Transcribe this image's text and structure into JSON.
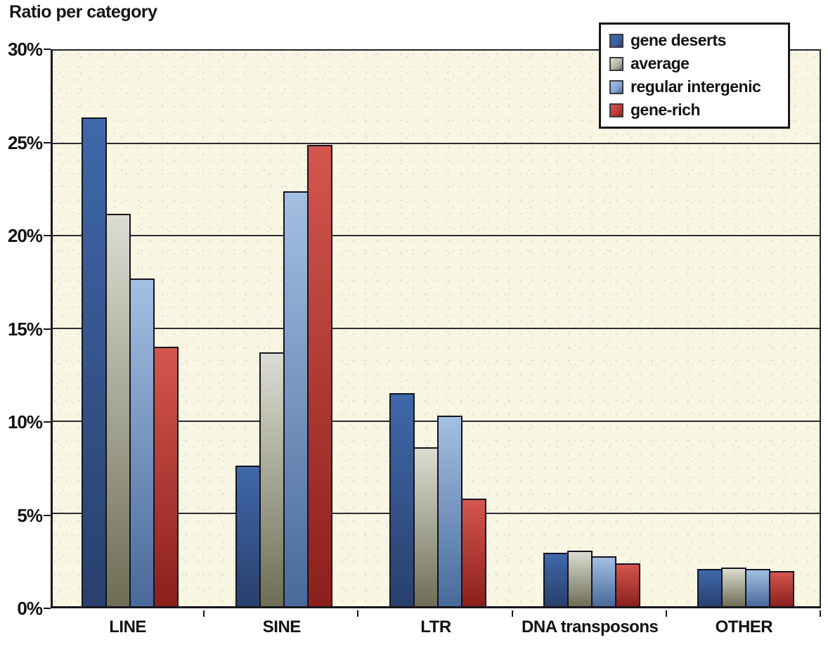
{
  "title": "Ratio per category",
  "chart_data": {
    "type": "bar",
    "title": "Ratio per category",
    "categories": [
      "LINE",
      "SINE",
      "LTR",
      "DNA transposons",
      "OTHER"
    ],
    "series": [
      {
        "name": "gene deserts",
        "values": [
          26.4,
          7.6,
          11.5,
          2.9,
          2.0
        ],
        "color_top": "#4068aa",
        "color_bottom": "#28406d",
        "legend_color": "#3a5fa0"
      },
      {
        "name": "average",
        "values": [
          21.2,
          13.7,
          8.6,
          3.0,
          2.1
        ],
        "color_top": "#dcdcd2",
        "color_bottom": "#6e6e56",
        "legend_color": "#b4b4a2"
      },
      {
        "name": "regular intergenic",
        "values": [
          17.7,
          22.4,
          10.3,
          2.7,
          2.0
        ],
        "color_top": "#a3c0e2",
        "color_bottom": "#48699b",
        "legend_color": "#7fa6d2"
      },
      {
        "name": "gene-rich",
        "values": [
          14.0,
          24.9,
          5.8,
          2.3,
          1.9
        ],
        "color_top": "#d4564e",
        "color_bottom": "#8c1f1c",
        "legend_color": "#c23831"
      }
    ],
    "xlabel": "",
    "ylabel": "",
    "ylim": [
      0,
      30
    ],
    "ytick_step": 5,
    "ytick_labels": [
      "0%",
      "5%",
      "10%",
      "15%",
      "20%",
      "25%",
      "30%"
    ],
    "grid": true,
    "legend_position": "top-right",
    "plot_bg": "#faf6e4",
    "gridline_color": "#2c2c36"
  }
}
